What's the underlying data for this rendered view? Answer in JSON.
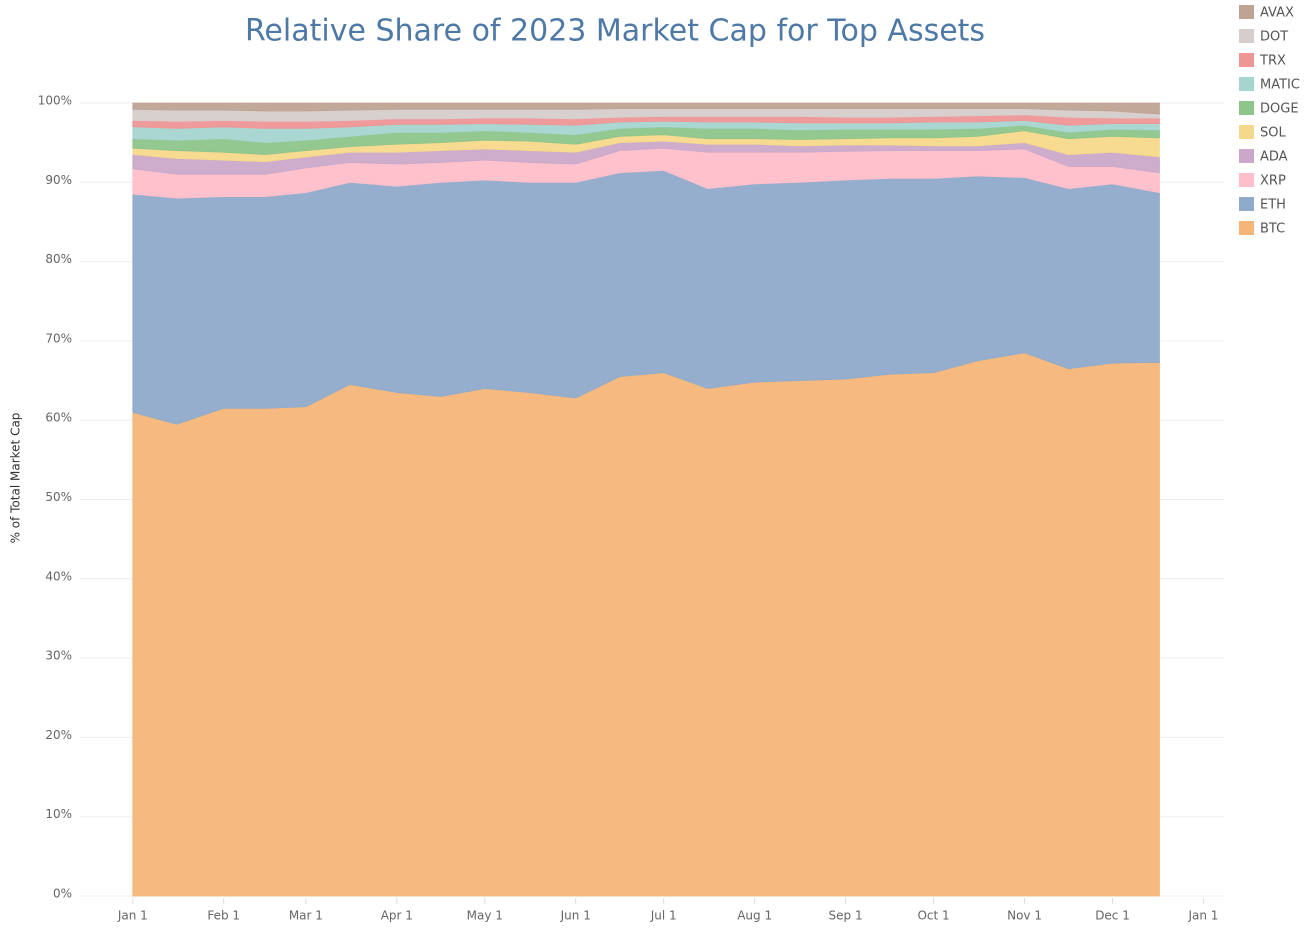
{
  "chart_data": {
    "type": "stacked_area",
    "title": "Relative Share of 2023 Market Cap for Top Assets",
    "y_label": "% of Total Market Cap",
    "x": [
      0,
      15,
      31,
      45,
      59,
      74,
      90,
      105,
      120,
      135,
      151,
      166,
      181,
      196,
      212,
      227,
      243,
      258,
      273,
      288,
      304,
      319,
      334,
      350
    ],
    "xlim": [
      -18,
      372
    ],
    "xticks": [
      {
        "value": 0,
        "label": "Jan 1"
      },
      {
        "value": 31,
        "label": "Feb 1"
      },
      {
        "value": 59,
        "label": "Mar 1"
      },
      {
        "value": 90,
        "label": "Apr 1"
      },
      {
        "value": 120,
        "label": "May 1"
      },
      {
        "value": 151,
        "label": "Jun 1"
      },
      {
        "value": 181,
        "label": "Jul 1"
      },
      {
        "value": 212,
        "label": "Aug 1"
      },
      {
        "value": 243,
        "label": "Sep 1"
      },
      {
        "value": 273,
        "label": "Oct 1"
      },
      {
        "value": 304,
        "label": "Nov 1"
      },
      {
        "value": 334,
        "label": "Dec 1"
      },
      {
        "value": 365,
        "label": "Jan 1"
      }
    ],
    "ylim": [
      0,
      100
    ],
    "yticks": [
      {
        "value": 0,
        "label": "0%"
      },
      {
        "value": 10,
        "label": "10%"
      },
      {
        "value": 20,
        "label": "20%"
      },
      {
        "value": 30,
        "label": "30%"
      },
      {
        "value": 40,
        "label": "40%"
      },
      {
        "value": 50,
        "label": "50%"
      },
      {
        "value": 60,
        "label": "60%"
      },
      {
        "value": 70,
        "label": "70%"
      },
      {
        "value": 80,
        "label": "80%"
      },
      {
        "value": 90,
        "label": "90%"
      },
      {
        "value": 100,
        "label": "100%"
      }
    ],
    "grid": true,
    "legend": "top-right",
    "series": [
      {
        "name": "BTC",
        "color": "#f5b579",
        "values": [
          61,
          59.5,
          61.5,
          61.5,
          61.7,
          64.5,
          63.5,
          63,
          64,
          63.5,
          62.8,
          65.5,
          66,
          64,
          64.8,
          65,
          65.2,
          65.8,
          66,
          67.5,
          68.5,
          66.5,
          67.2,
          67.3
        ]
      },
      {
        "name": "ETH",
        "color": "#8faaca",
        "values": [
          27.5,
          28.5,
          26.7,
          26.7,
          27,
          25.5,
          26,
          27,
          26.3,
          26.5,
          27.2,
          25.7,
          25.5,
          25.2,
          25,
          25,
          25.1,
          24.7,
          24.5,
          23.3,
          22.1,
          22.7,
          22.6,
          21.4
        ]
      },
      {
        "name": "XRP",
        "color": "#ffbfca",
        "values": [
          3.2,
          3,
          2.8,
          2.8,
          3.1,
          2.5,
          2.8,
          2.5,
          2.5,
          2.5,
          2.3,
          2.8,
          2.8,
          4.6,
          4,
          3.8,
          3.6,
          3.5,
          3.5,
          3.2,
          3.6,
          2.8,
          2.2,
          2.5
        ]
      },
      {
        "name": "ADA",
        "color": "#cba8c9",
        "values": [
          1.8,
          2,
          1.8,
          1.6,
          1.4,
          1.3,
          1.5,
          1.5,
          1.4,
          1.5,
          1.5,
          1,
          0.9,
          1,
          1,
          0.8,
          0.8,
          0.7,
          0.6,
          0.6,
          0.8,
          1.5,
          1.8,
          2
        ]
      },
      {
        "name": "SOL",
        "color": "#f5d98b",
        "values": [
          0.8,
          1,
          1,
          0.9,
          0.8,
          0.7,
          1,
          1,
          1.1,
          1.2,
          1,
          0.8,
          0.8,
          0.7,
          0.7,
          0.8,
          0.8,
          0.9,
          1,
          1.2,
          1.5,
          2,
          2,
          2.4
        ]
      },
      {
        "name": "DOGE",
        "color": "#8ec58b",
        "values": [
          1.2,
          1.3,
          1.7,
          1.5,
          1.3,
          1.3,
          1.5,
          1.3,
          1.2,
          1.1,
          1.2,
          1,
          1,
          1.3,
          1.3,
          1.2,
          1.2,
          1.1,
          1.1,
          1,
          0.7,
          0.8,
          0.9,
          1
        ]
      },
      {
        "name": "MATIC",
        "color": "#a6d5d0",
        "values": [
          1.5,
          1.5,
          1.5,
          1.8,
          1.5,
          1.2,
          1,
          1,
          0.9,
          1,
          1.2,
          0.8,
          0.7,
          0.8,
          0.8,
          0.9,
          0.8,
          0.8,
          0.9,
          0.8,
          0.6,
          0.9,
          0.7,
          0.8
        ]
      },
      {
        "name": "TRX",
        "color": "#ee9596",
        "values": [
          0.8,
          0.9,
          0.8,
          0.9,
          0.9,
          0.8,
          0.7,
          0.7,
          0.7,
          0.8,
          0.8,
          0.6,
          0.6,
          0.7,
          0.7,
          0.8,
          0.7,
          0.7,
          0.7,
          0.8,
          0.7,
          1,
          0.7,
          0.7
        ]
      },
      {
        "name": "DOT",
        "color": "#d6cdcc",
        "values": [
          1.4,
          1.4,
          1.3,
          1.3,
          1.3,
          1.3,
          1.2,
          1.2,
          1.1,
          1.1,
          1.2,
          1.1,
          1,
          1,
          1,
          1,
          1.1,
          1.1,
          1,
          0.9,
          0.8,
          0.9,
          0.9,
          0.5
        ]
      },
      {
        "name": "AVAX",
        "color": "#bfa394",
        "values": [
          0.8,
          0.9,
          0.9,
          1,
          1,
          0.9,
          0.8,
          0.8,
          0.8,
          0.8,
          0.8,
          0.7,
          0.7,
          0.7,
          0.7,
          0.7,
          0.7,
          0.7,
          0.7,
          0.7,
          0.7,
          0.9,
          1,
          1.4
        ]
      }
    ]
  }
}
